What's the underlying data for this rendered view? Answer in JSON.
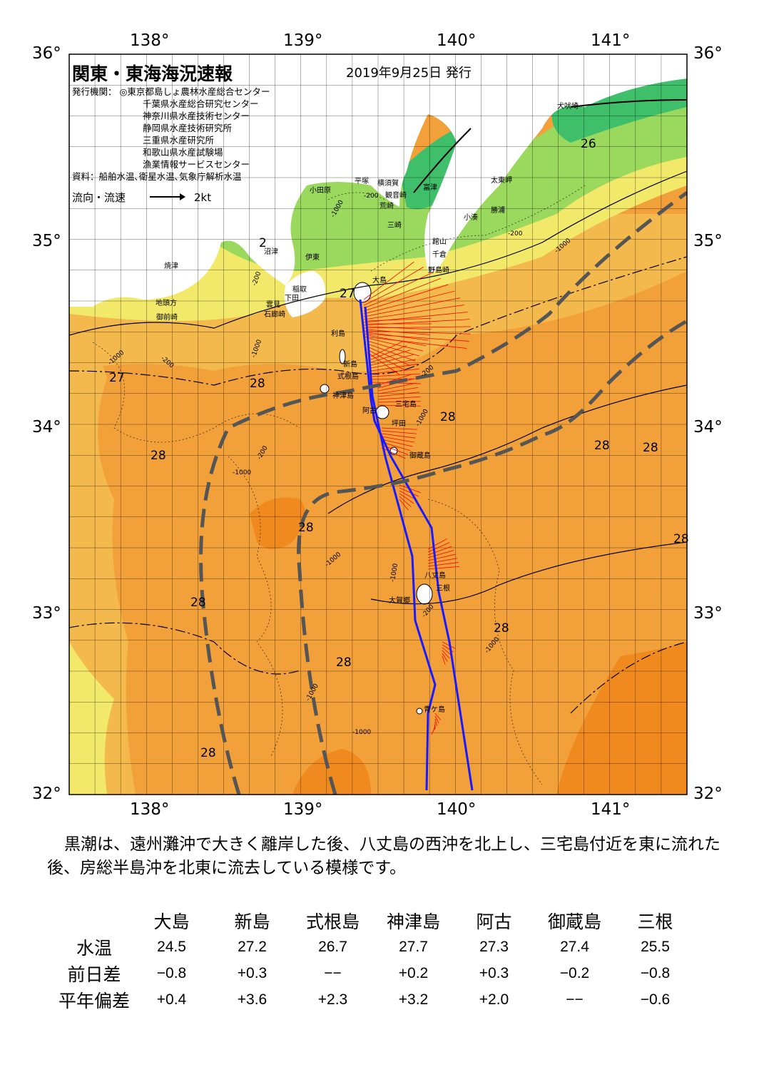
{
  "title": "関東・東海海況速報",
  "date": "2019年9月25日 発行",
  "issuers_label": "発行機関：",
  "issuers": [
    "◎東京都島しょ農林水産総合センター",
    "千葉県水産総合研究センター",
    "神奈川県水産技術センター",
    "静岡県水産技術研究所",
    "三重県水産研究所",
    "和歌山県水産試験場",
    "漁業情報サービスセンター"
  ],
  "sources": "資料：船舶水温､衛星水温､気象庁解析水温",
  "legend": {
    "label": "流向・流速",
    "scale": "2kt"
  },
  "axes": {
    "lon_ticks": [
      "138°",
      "139°",
      "140°",
      "141°"
    ],
    "lat_ticks": [
      "36°",
      "35°",
      "34°",
      "33°",
      "32°"
    ]
  },
  "place_names": {
    "inubozaki": "犬吠埼",
    "taitozaki": "太東岬",
    "katsuura": "勝浦",
    "kominato": "小湊",
    "futtsu": "富津",
    "tateyama": "館山",
    "chikura": "千倉",
    "nojimazaki": "野島崎",
    "yokosuka": "横須賀",
    "kannonzaki": "観音崎",
    "hiratsuka": "平塚",
    "odawara": "小田原",
    "araizaki": "荒崎",
    "misaki": "三崎",
    "numazu": "沼津",
    "ito": "伊東",
    "yaizu": "焼津",
    "inatori": "稲取",
    "shimoda": "下田",
    "kumomi": "雲見",
    "irozaki": "石廊崎",
    "chikyumisaki": "地頭方",
    "omaezaki": "御前崎",
    "oshima": "大島",
    "toshima": "利島",
    "niijima": "新島",
    "shikinejima": "式根島",
    "kozushima": "神津島",
    "ako": "阿古",
    "miyakejima": "三宅島",
    "miyake_ako": "坪田",
    "mikurajima": "御蔵島",
    "hachijojima": "八丈島",
    "mitsune": "三根",
    "okago": "大賀郷",
    "aogashima": "青ケ島"
  },
  "temperature_labels": [
    "26",
    "2",
    "27",
    "27",
    "28",
    "28",
    "28",
    "28",
    "28",
    "28",
    "28",
    "28",
    "28",
    "28",
    "28",
    "28",
    "28"
  ],
  "isobath_labels": [
    "-1000",
    "-200",
    "-200",
    "-1000",
    "-1000",
    "-200",
    "-200",
    "-1000",
    "-200",
    "-1000",
    "-1000",
    "-1000",
    "-200",
    "-1000",
    "-1000",
    "-1000",
    "-1000",
    "-200"
  ],
  "summary": "黒潮は、遠州灘沖で大きく離岸した後、八丈島の西沖を北上し、三宅島付近を東に流れた後、房総半島沖を北東に流去している模様です。",
  "table": {
    "stations": [
      "大島",
      "新島",
      "式根島",
      "神津島",
      "阿古",
      "御蔵島",
      "三根"
    ],
    "rows": [
      {
        "label": "水温",
        "values": [
          "24.5",
          "27.2",
          "26.7",
          "27.7",
          "27.3",
          "27.4",
          "25.5"
        ]
      },
      {
        "label": "前日差",
        "values": [
          "−0.8",
          "+0.3",
          "−−",
          "+0.2",
          "+0.3",
          "−0.2",
          "−0.8"
        ]
      },
      {
        "label": "平年偏差",
        "values": [
          "+0.4",
          "+3.6",
          "+2.3",
          "+3.2",
          "+2.0",
          "−−",
          "−0.6"
        ]
      }
    ]
  },
  "colors": {
    "land": "#ffffff",
    "sst_coldest": "#3fbf6a",
    "sst_cool": "#9ad85e",
    "sst_mild": "#f2e96a",
    "sst_warm": "#f4b94c",
    "sst_warmer": "#f2a03a",
    "sst_hot": "#f08a1e",
    "kuroshio_axis": "#555555",
    "ship_track": "#1a1aff",
    "current_vectors": "#ff0000"
  }
}
